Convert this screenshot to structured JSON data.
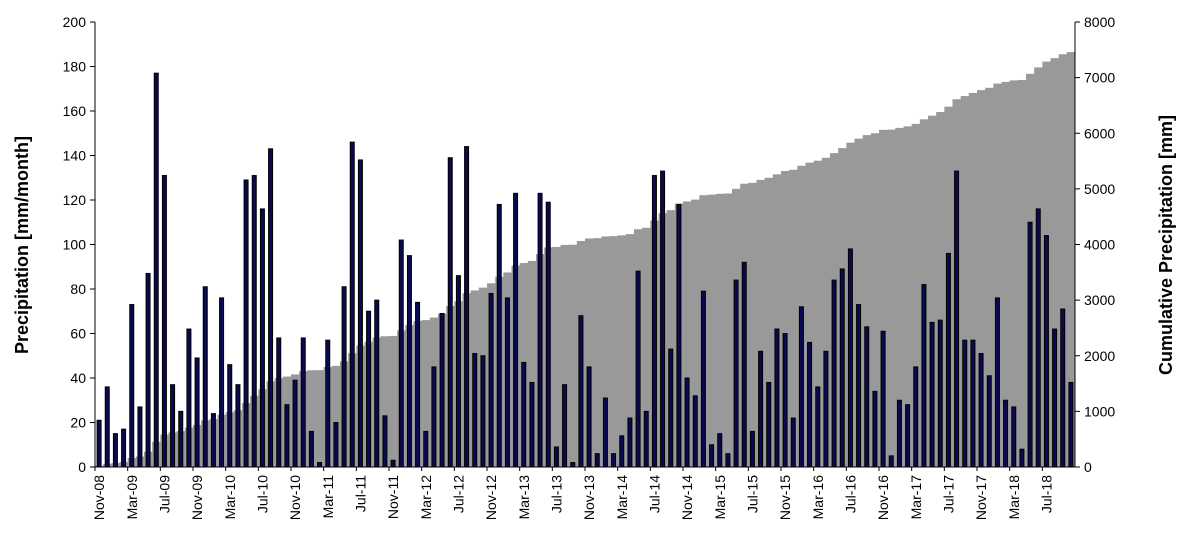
{
  "chart_data": {
    "type": "bar",
    "ylabel": "Precipitation  [mm/month]",
    "y2label": "Cumulative Precipitation [mm]",
    "categories": [
      "Nov-08",
      null,
      null,
      null,
      "Mar-09",
      null,
      null,
      null,
      "Jul-09",
      null,
      null,
      null,
      "Nov-09",
      null,
      null,
      null,
      "Mar-10",
      null,
      null,
      null,
      "Jul-10",
      null,
      null,
      null,
      "Nov-10",
      null,
      null,
      null,
      "Mar-11",
      null,
      null,
      null,
      "Jul-11",
      null,
      null,
      null,
      "Nov-11",
      null,
      null,
      null,
      "Mar-12",
      null,
      null,
      null,
      "Jul-12",
      null,
      null,
      null,
      "Nov-12",
      null,
      null,
      null,
      "Mar-13",
      null,
      null,
      null,
      "Jul-13",
      null,
      null,
      null,
      "Nov-13",
      null,
      null,
      null,
      "Mar-14",
      null,
      null,
      null,
      "Jul-14",
      null,
      null,
      null,
      "Nov-14",
      null,
      null,
      null,
      "Mar-15",
      null,
      null,
      null,
      "Jul-15",
      null,
      null,
      null,
      "Nov-15",
      null,
      null,
      null,
      "Mar-16",
      null,
      null,
      null,
      "Jul-16",
      null,
      null,
      null,
      "Nov-16",
      null,
      null,
      null,
      "Mar-17",
      null,
      null,
      null,
      "Jul-17",
      null,
      null,
      null,
      "Nov-17",
      null,
      null,
      null,
      "Mar-18",
      null,
      null,
      null,
      "Jul-18",
      null,
      null,
      null
    ],
    "series": [
      {
        "type": "area",
        "axis": "y2",
        "color": "#999999",
        "values": [
          21,
          57,
          72,
          89,
          162,
          189,
          276,
          453,
          584,
          621,
          646,
          708,
          757,
          838,
          862,
          938,
          984,
          1021,
          1150,
          1281,
          1397,
          1540,
          1598,
          1626,
          1665,
          1723,
          1739,
          1741,
          1798,
          1818,
          1899,
          2045,
          2183,
          2253,
          2328,
          2351,
          2354,
          2456,
          2551,
          2625,
          2641,
          2686,
          2755,
          2894,
          2980,
          3124,
          3175,
          3225,
          3303,
          3421,
          3497,
          3620,
          3667,
          3705,
          3828,
          3947,
          3956,
          3993,
          3995,
          4063,
          4108,
          4114,
          4145,
          4151,
          4165,
          4187,
          4275,
          4300,
          4431,
          4564,
          4617,
          4735,
          4775,
          4807,
          4886,
          4896,
          4911,
          4917,
          5001,
          5093,
          5109,
          5161,
          5199,
          5261,
          5321,
          5343,
          5415,
          5471,
          5507,
          5559,
          5643,
          5732,
          5830,
          5903,
          5966,
          6000,
          6061,
          6066,
          6096,
          6124,
          6169,
          6251,
          6316,
          6382,
          6478,
          6611,
          6668,
          6725,
          6776,
          6817,
          6893,
          6923,
          6950,
          6958,
          7068,
          7184,
          7288,
          7350,
          7421,
          7459
        ]
      },
      {
        "type": "bar",
        "color": "#0a0a50",
        "values": [
          21,
          36,
          15,
          17,
          73,
          27,
          87,
          177,
          131,
          37,
          25,
          62,
          49,
          81,
          24,
          76,
          46,
          37,
          129,
          131,
          116,
          143,
          58,
          28,
          39,
          58,
          16,
          2,
          57,
          20,
          81,
          146,
          138,
          70,
          75,
          23,
          3,
          102,
          95,
          74,
          16,
          45,
          69,
          139,
          86,
          144,
          51,
          50,
          78,
          118,
          76,
          123,
          47,
          38,
          123,
          119,
          9,
          37,
          2,
          68,
          45,
          6,
          31,
          6,
          14,
          22,
          88,
          25,
          131,
          133,
          53,
          118,
          40,
          32,
          79,
          10,
          15,
          6,
          84,
          92,
          16,
          52,
          38,
          62,
          60,
          22,
          72,
          56,
          36,
          52,
          84,
          89,
          98,
          73,
          63,
          34,
          61,
          5,
          30,
          28,
          45,
          82,
          65,
          66,
          96,
          133,
          57,
          57,
          51,
          41,
          76,
          30,
          27,
          8,
          110,
          116,
          104,
          62,
          71,
          38
        ]
      }
    ],
    "ylim": [
      0,
      200
    ],
    "yticks": [
      0,
      20,
      40,
      60,
      80,
      100,
      120,
      140,
      160,
      180,
      200
    ],
    "y2lim": [
      0,
      8000
    ],
    "y2ticks": [
      0,
      1000,
      2000,
      3000,
      4000,
      5000,
      6000,
      7000,
      8000
    ],
    "grid": false
  }
}
